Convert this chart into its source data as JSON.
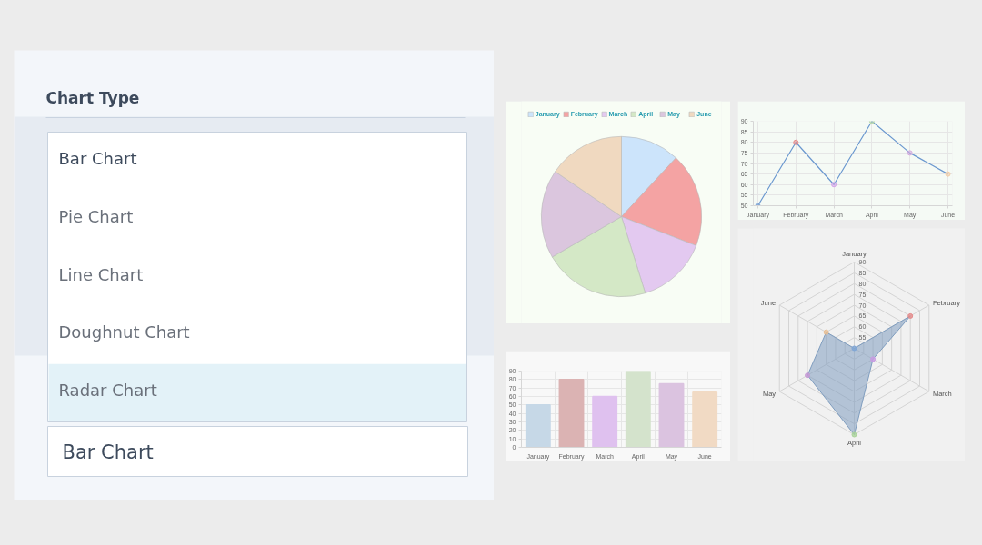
{
  "chart_data": [
    {
      "type": "other",
      "title": "Chart Type",
      "annotations": [
        "Bar Chart",
        "Pie Chart",
        "Line Chart",
        "Doughnut Chart",
        "Radar Chart",
        "Bar Chart"
      ]
    },
    {
      "type": "pie",
      "categories": [
        "January",
        "February",
        "March",
        "April",
        "May",
        "June"
      ],
      "values": [
        11.9,
        19.0,
        14.3,
        21.4,
        17.9,
        15.5
      ],
      "colors": [
        "#cce4fb",
        "#f4a3a3",
        "#e3c9f0",
        "#d4e8c6",
        "#dbc6de",
        "#f0d9c0"
      ],
      "legend": "top"
    },
    {
      "type": "bar",
      "categories": [
        "January",
        "February",
        "March",
        "April",
        "May",
        "June"
      ],
      "values": [
        50,
        80,
        60,
        90,
        75,
        65
      ],
      "colors": [
        "#c6d8e7",
        "#dbb3b3",
        "#dfc1ef",
        "#d4e3cc",
        "#dbc3e0",
        "#f1dac4"
      ],
      "ylim": [
        0,
        90
      ],
      "yticks": [
        0,
        10,
        20,
        30,
        40,
        50,
        60,
        70,
        80,
        90
      ],
      "grid": true
    },
    {
      "type": "line",
      "categories": [
        "January",
        "February",
        "March",
        "April",
        "May",
        "June"
      ],
      "series": [
        {
          "color": "#6b98cf",
          "colors": [
            "#7fa6d6",
            "#e58b8b",
            "#d4a5ea",
            "#b9d9a9",
            "#d5ade0",
            "#f2cda8"
          ],
          "values": [
            50,
            80,
            60,
            90,
            75,
            65
          ]
        }
      ],
      "ylim": [
        50,
        90
      ],
      "yticks": [
        50,
        55,
        60,
        65,
        70,
        75,
        80,
        85,
        90
      ],
      "grid": true,
      "marker": "circle"
    },
    {
      "type": "radar",
      "categories": [
        "January",
        "February",
        "March",
        "April",
        "May",
        "June"
      ],
      "series": [
        {
          "color": "#7f9dbf",
          "colors": [
            "#7fa6d6",
            "#e58b8b",
            "#c99be3",
            "#a9d39a",
            "#c79ad6",
            "#e9bf94"
          ],
          "values": [
            50,
            80,
            60,
            90,
            75,
            65
          ]
        }
      ],
      "ylim": [
        50,
        90
      ],
      "yticks": [
        55,
        60,
        65,
        70,
        75,
        80,
        85,
        90
      ],
      "grid": true,
      "marker": "circle"
    }
  ]
}
